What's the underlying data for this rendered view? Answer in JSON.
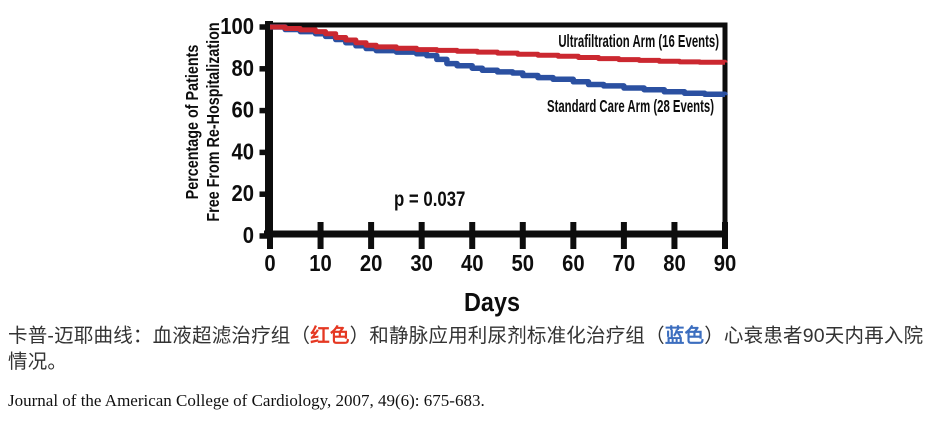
{
  "chart_data": {
    "type": "line",
    "subtype": "kaplan-meier-step",
    "title": "",
    "xlabel": "Days",
    "ylabel": "Percentage of Patients Free From Re-Hospitalization",
    "ylabel_lines": [
      "Percentage of Patients",
      "Free From Re-Hospitalization"
    ],
    "xlim": [
      0,
      90
    ],
    "ylim": [
      0,
      100
    ],
    "x_ticks": [
      0,
      10,
      20,
      30,
      40,
      50,
      60,
      70,
      80,
      90
    ],
    "y_ticks": [
      0,
      20,
      40,
      60,
      80,
      100
    ],
    "grid": false,
    "legend_position": "inside-right",
    "annotation": "p = 0.037",
    "axis_color": "#0d0d0d",
    "series": [
      {
        "name": "Ultrafiltration Arm (16 Events)",
        "color": "#cb2830",
        "stroke_width": 5,
        "x": [
          0,
          3,
          6,
          9,
          11,
          13,
          15,
          17,
          19,
          21,
          25,
          29,
          33,
          37,
          41,
          45,
          49,
          53,
          57,
          61,
          65,
          69,
          73,
          77,
          81,
          85,
          90
        ],
        "y": [
          100,
          99.3,
          98.6,
          97.8,
          96.8,
          95.0,
          93.8,
          92.5,
          91.3,
          90.5,
          89.8,
          89.2,
          88.8,
          88.4,
          88.0,
          87.5,
          87.0,
          86.5,
          86.0,
          85.4,
          84.9,
          84.4,
          84.0,
          83.6,
          83.3,
          83.1,
          83.0
        ]
      },
      {
        "name": "Standard Care Arm (28 Events)",
        "color": "#2b50a1",
        "stroke_width": 5.5,
        "x": [
          0,
          3,
          6,
          9,
          11,
          13,
          15,
          17,
          19,
          21,
          25,
          29,
          31,
          33,
          35,
          37,
          40,
          42,
          45,
          48,
          50,
          53,
          56,
          60,
          63,
          66,
          70,
          74,
          78,
          82,
          86,
          90
        ],
        "y": [
          100,
          98.8,
          97.8,
          96.8,
          95.5,
          94.0,
          92.5,
          91.0,
          89.7,
          88.7,
          88.0,
          87.2,
          86.3,
          84.5,
          82.5,
          81.5,
          80.3,
          79.3,
          78.5,
          78.0,
          76.8,
          75.8,
          75.0,
          73.8,
          72.5,
          71.8,
          70.8,
          70.0,
          69.0,
          68.3,
          67.8,
          67.3
        ]
      }
    ]
  },
  "caption": {
    "part1": "卡普-迈耶曲线：血液超滤治疗组（",
    "red_label": "红色",
    "part2": "）和静脉应用利尿剂标准化治疗组（",
    "blue_label": "蓝色",
    "part3": "）心衰患者90天内再入院情况。",
    "red_color": "#e53822",
    "blue_color": "#3c6ebf"
  },
  "citation": "Journal of the American College of Cardiology, 2007, 49(6): 675-683."
}
